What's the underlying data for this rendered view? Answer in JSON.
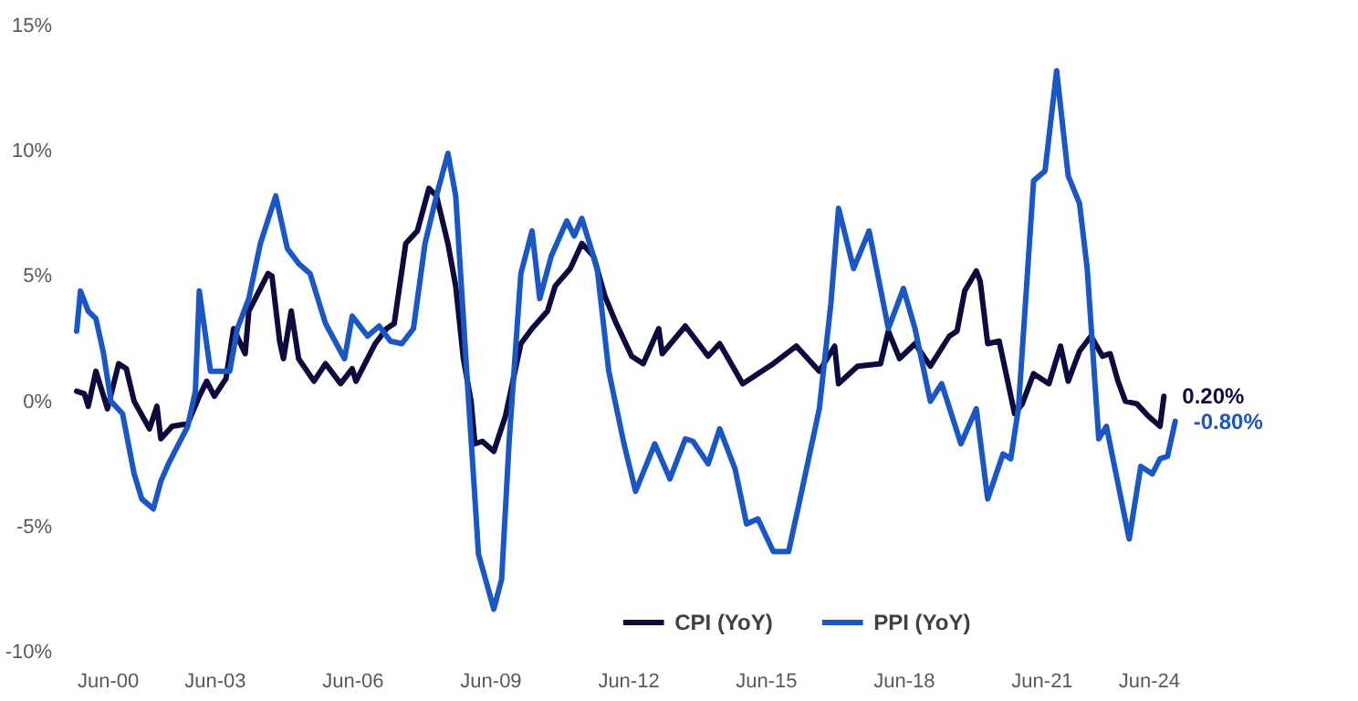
{
  "chart_data": {
    "type": "line",
    "xlim": [
      "2000-06",
      "2024-06"
    ],
    "ylim": [
      -10,
      15
    ],
    "xticks": [
      {
        "value": "2000-06",
        "label": "Jun-00"
      },
      {
        "value": "2003-06",
        "label": "Jun-03"
      },
      {
        "value": "2006-06",
        "label": "Jun-06"
      },
      {
        "value": "2009-06",
        "label": "Jun-09"
      },
      {
        "value": "2012-06",
        "label": "Jun-12"
      },
      {
        "value": "2015-06",
        "label": "Jun-15"
      },
      {
        "value": "2018-06",
        "label": "Jun-18"
      },
      {
        "value": "2021-06",
        "label": "Jun-21"
      },
      {
        "value": "2024-06",
        "label": "Jun-24"
      }
    ],
    "yticks": [
      {
        "value": -10,
        "label": "-10%"
      },
      {
        "value": -5,
        "label": "-5%"
      },
      {
        "value": 0,
        "label": "0%"
      },
      {
        "value": 5,
        "label": "5%"
      },
      {
        "value": 10,
        "label": "10%"
      },
      {
        "value": 15,
        "label": "15%"
      }
    ],
    "grid": false,
    "legend": "bottom",
    "line_style": "solid",
    "series": [
      {
        "name": "CPI (YoY)",
        "color": "#0d0a3d",
        "x": [
          "2000-06",
          "2000-08",
          "2000-09",
          "2000-11",
          "2001-02",
          "2001-05",
          "2001-07",
          "2001-09",
          "2002-01",
          "2002-03",
          "2002-04",
          "2002-07",
          "2002-11",
          "2003-02",
          "2003-04",
          "2003-06",
          "2003-09",
          "2003-11",
          "2004-02",
          "2004-03",
          "2004-08",
          "2004-09",
          "2004-11",
          "2004-12",
          "2005-02",
          "2005-04",
          "2005-08",
          "2005-11",
          "2006-03",
          "2006-06",
          "2006-07",
          "2006-12",
          "2007-03",
          "2007-05",
          "2007-08",
          "2007-11",
          "2008-02",
          "2008-04",
          "2008-07",
          "2008-09",
          "2008-11",
          "2009-01",
          "2009-02",
          "2009-04",
          "2009-07",
          "2009-10",
          "2010-02",
          "2010-05",
          "2010-09",
          "2010-11",
          "2011-03",
          "2011-06",
          "2011-09",
          "2011-12",
          "2012-03",
          "2012-07",
          "2012-10",
          "2013-02",
          "2013-03",
          "2013-09",
          "2014-03",
          "2014-06",
          "2014-12",
          "2015-05",
          "2015-08",
          "2016-02",
          "2016-08",
          "2016-12",
          "2017-01",
          "2017-06",
          "2017-12",
          "2018-02",
          "2018-05",
          "2018-09",
          "2019-01",
          "2019-06",
          "2019-08",
          "2019-10",
          "2020-01",
          "2020-02",
          "2020-04",
          "2020-07",
          "2020-11",
          "2021-01",
          "2021-04",
          "2021-08",
          "2021-11",
          "2022-01",
          "2022-04",
          "2022-07",
          "2022-10",
          "2022-12",
          "2023-02",
          "2023-04",
          "2023-07",
          "2023-10",
          "2024-01",
          "2024-02"
        ],
        "values": [
          0.4,
          0.3,
          -0.2,
          1.2,
          -0.3,
          1.5,
          1.3,
          0,
          -1.1,
          -0.2,
          -1.5,
          -1.0,
          -0.9,
          0.2,
          0.8,
          0.2,
          0.9,
          2.9,
          1.9,
          3.6,
          5.1,
          5.0,
          2.4,
          1.7,
          3.6,
          1.7,
          0.8,
          1.5,
          0.7,
          1.3,
          0.8,
          2.3,
          2.9,
          3.1,
          6.3,
          6.8,
          8.5,
          8.2,
          6.3,
          4.6,
          1.7,
          0,
          -1.7,
          -1.6,
          -2.0,
          -0.6,
          2.3,
          2.9,
          3.6,
          4.6,
          5.3,
          6.3,
          5.8,
          4.2,
          3.1,
          1.8,
          1.5,
          2.9,
          1.9,
          3.0,
          1.8,
          2.3,
          0.7,
          1.2,
          1.5,
          2.2,
          1.2,
          2.2,
          0.7,
          1.4,
          1.5,
          2.8,
          1.7,
          2.3,
          1.4,
          2.6,
          2.8,
          4.4,
          5.2,
          4.8,
          2.3,
          2.4,
          -0.5,
          -0.1,
          1.1,
          0.7,
          2.2,
          0.8,
          2.0,
          2.6,
          1.8,
          1.9,
          0.8,
          0,
          -0.1,
          -0.6,
          -1.0,
          0.2
        ]
      },
      {
        "name": "PPI (YoY)",
        "color": "#1a56c4",
        "x": [
          "2000-06",
          "2000-07",
          "2000-09",
          "2000-11",
          "2001-01",
          "2001-03",
          "2001-06",
          "2001-09",
          "2001-11",
          "2002-02",
          "2002-04",
          "2002-06",
          "2002-11",
          "2003-01",
          "2003-02",
          "2003-05",
          "2003-10",
          "2003-12",
          "2004-03",
          "2004-06",
          "2004-10",
          "2005-01",
          "2005-04",
          "2005-07",
          "2005-11",
          "2006-04",
          "2006-06",
          "2006-10",
          "2007-01",
          "2007-04",
          "2007-07",
          "2007-10",
          "2008-01",
          "2008-04",
          "2008-07",
          "2008-09",
          "2008-12",
          "2009-02",
          "2009-03",
          "2009-07",
          "2009-09",
          "2009-11",
          "2010-02",
          "2010-05",
          "2010-07",
          "2010-10",
          "2011-02",
          "2011-04",
          "2011-06",
          "2011-10",
          "2012-01",
          "2012-05",
          "2012-08",
          "2013-01",
          "2013-05",
          "2013-09",
          "2013-11",
          "2014-03",
          "2014-06",
          "2014-10",
          "2015-01",
          "2015-04",
          "2015-08",
          "2015-12",
          "2016-03",
          "2016-08",
          "2016-11",
          "2017-01",
          "2017-05",
          "2017-09",
          "2018-02",
          "2018-06",
          "2018-09",
          "2019-01",
          "2019-04",
          "2019-09",
          "2020-01",
          "2020-04",
          "2020-08",
          "2020-10",
          "2020-12",
          "2021-04",
          "2021-07",
          "2021-10",
          "2022-01",
          "2022-04",
          "2022-06",
          "2022-09",
          "2022-11",
          "2023-05",
          "2023-08",
          "2023-11",
          "2024-01",
          "2024-03",
          "2024-05"
        ],
        "values": [
          2.8,
          4.4,
          3.6,
          3.3,
          1.9,
          0,
          -0.5,
          -2.9,
          -3.9,
          -4.3,
          -3.2,
          -2.5,
          -1.0,
          0.4,
          4.4,
          1.2,
          1.2,
          2.9,
          4.1,
          6.3,
          8.2,
          6.1,
          5.5,
          5.1,
          3.1,
          1.7,
          3.4,
          2.6,
          3.0,
          2.4,
          2.3,
          2.9,
          6.3,
          8.2,
          9.9,
          8.2,
          0.9,
          -3.9,
          -6.1,
          -8.3,
          -7.1,
          -1.5,
          5.1,
          6.8,
          4.1,
          5.8,
          7.2,
          6.6,
          7.3,
          5.3,
          1.2,
          -1.7,
          -3.6,
          -1.7,
          -3.1,
          -1.5,
          -1.6,
          -2.5,
          -1.1,
          -2.7,
          -4.9,
          -4.7,
          -6.0,
          -6.0,
          -3.9,
          -0.3,
          3.9,
          7.7,
          5.3,
          6.8,
          2.9,
          4.5,
          2.9,
          0,
          0.7,
          -1.7,
          -0.3,
          -3.9,
          -2.1,
          -2.3,
          -0.3,
          8.8,
          9.2,
          13.2,
          9.0,
          7.9,
          5.3,
          -1.5,
          -1.0,
          -5.5,
          -2.6,
          -2.9,
          -2.3,
          -2.2,
          -0.8
        ]
      }
    ],
    "annotations": [
      {
        "text": "0.20%",
        "x": "2024-02",
        "y": 0.2
      },
      {
        "text": "-0.80%",
        "x": "2024-05",
        "y": -0.8
      }
    ]
  }
}
